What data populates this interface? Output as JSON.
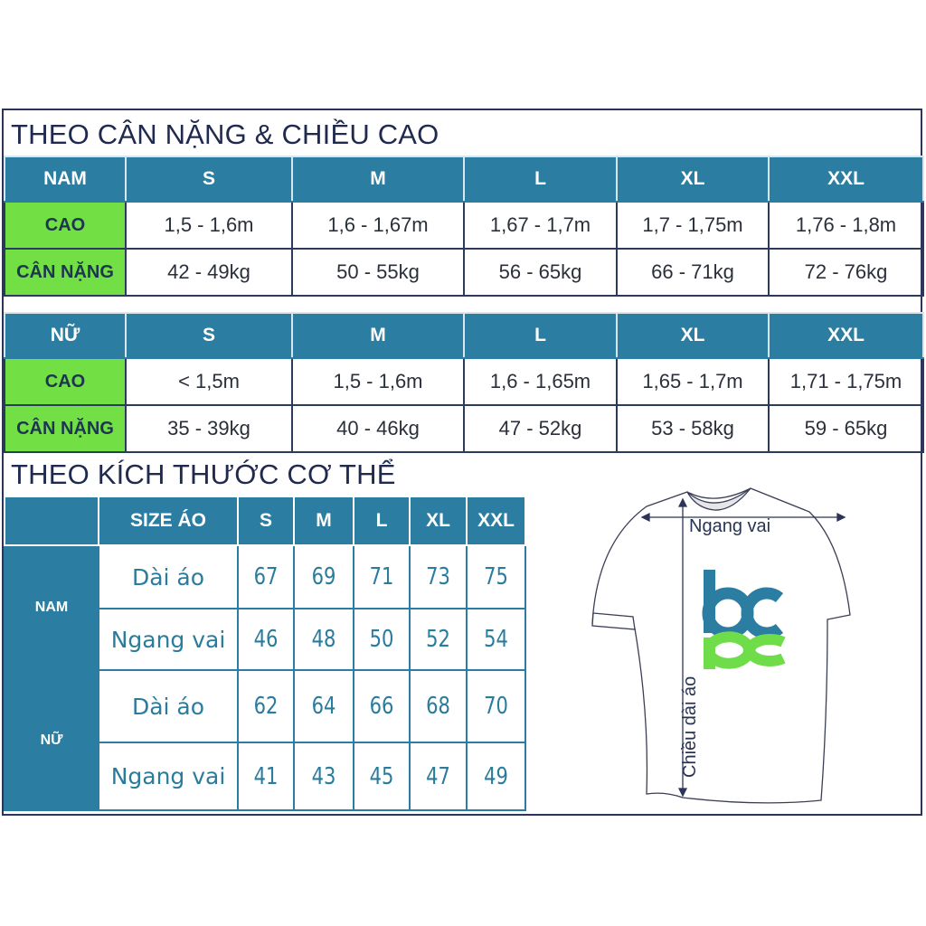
{
  "section1": {
    "title": "THEO CÂN NẶNG & CHIỀU CAO",
    "tables": [
      {
        "header": [
          "NAM",
          "S",
          "M",
          "L",
          "XL",
          "XXL"
        ],
        "rows": [
          {
            "label": "CAO",
            "values": [
              "1,5 - 1,6m",
              "1,6 - 1,67m",
              "1,67 - 1,7m",
              "1,7 - 1,75m",
              "1,76 - 1,8m"
            ]
          },
          {
            "label": "CÂN NẶNG",
            "values": [
              "42 - 49kg",
              "50 - 55kg",
              "56 - 65kg",
              "66 - 71kg",
              "72 - 76kg"
            ]
          }
        ]
      },
      {
        "header": [
          "NỮ",
          "S",
          "M",
          "L",
          "XL",
          "XXL"
        ],
        "rows": [
          {
            "label": "CAO",
            "values": [
              "< 1,5m",
              "1,5 - 1,6m",
              "1,6 - 1,65m",
              "1,65 - 1,7m",
              "1,71 - 1,75m"
            ]
          },
          {
            "label": "CÂN NẶNG",
            "values": [
              "35 - 39kg",
              "40 - 46kg",
              "47 - 52kg",
              "53 - 58kg",
              "59 - 65kg"
            ]
          }
        ]
      }
    ]
  },
  "section2": {
    "title": "THEO KÍCH THƯỚC CƠ THỂ",
    "header": [
      "",
      "SIZE ÁO",
      "S",
      "M",
      "L",
      "XL",
      "XXL"
    ],
    "groups": [
      {
        "label": "NAM",
        "rows": [
          {
            "label": "Dài áo",
            "values": [
              "67",
              "69",
              "71",
              "73",
              "75"
            ]
          },
          {
            "label": "Ngang vai",
            "values": [
              "46",
              "48",
              "50",
              "52",
              "54"
            ]
          }
        ]
      },
      {
        "label": "NỮ",
        "rows": [
          {
            "label": "Dài áo",
            "values": [
              "62",
              "64",
              "66",
              "68",
              "70"
            ]
          },
          {
            "label": "Ngang vai",
            "values": [
              "41",
              "43",
              "45",
              "47",
              "49"
            ]
          }
        ]
      }
    ]
  },
  "diagram": {
    "shoulder_label": "Ngang vai",
    "length_label": "Chiều dài áo",
    "logo_text": "bcpc"
  },
  "colors": {
    "header": "#2b7ea1",
    "label_green": "#72df45",
    "border": "#2c3559",
    "logo_blue": "#2b7ea1",
    "logo_green": "#6fdc4a"
  }
}
